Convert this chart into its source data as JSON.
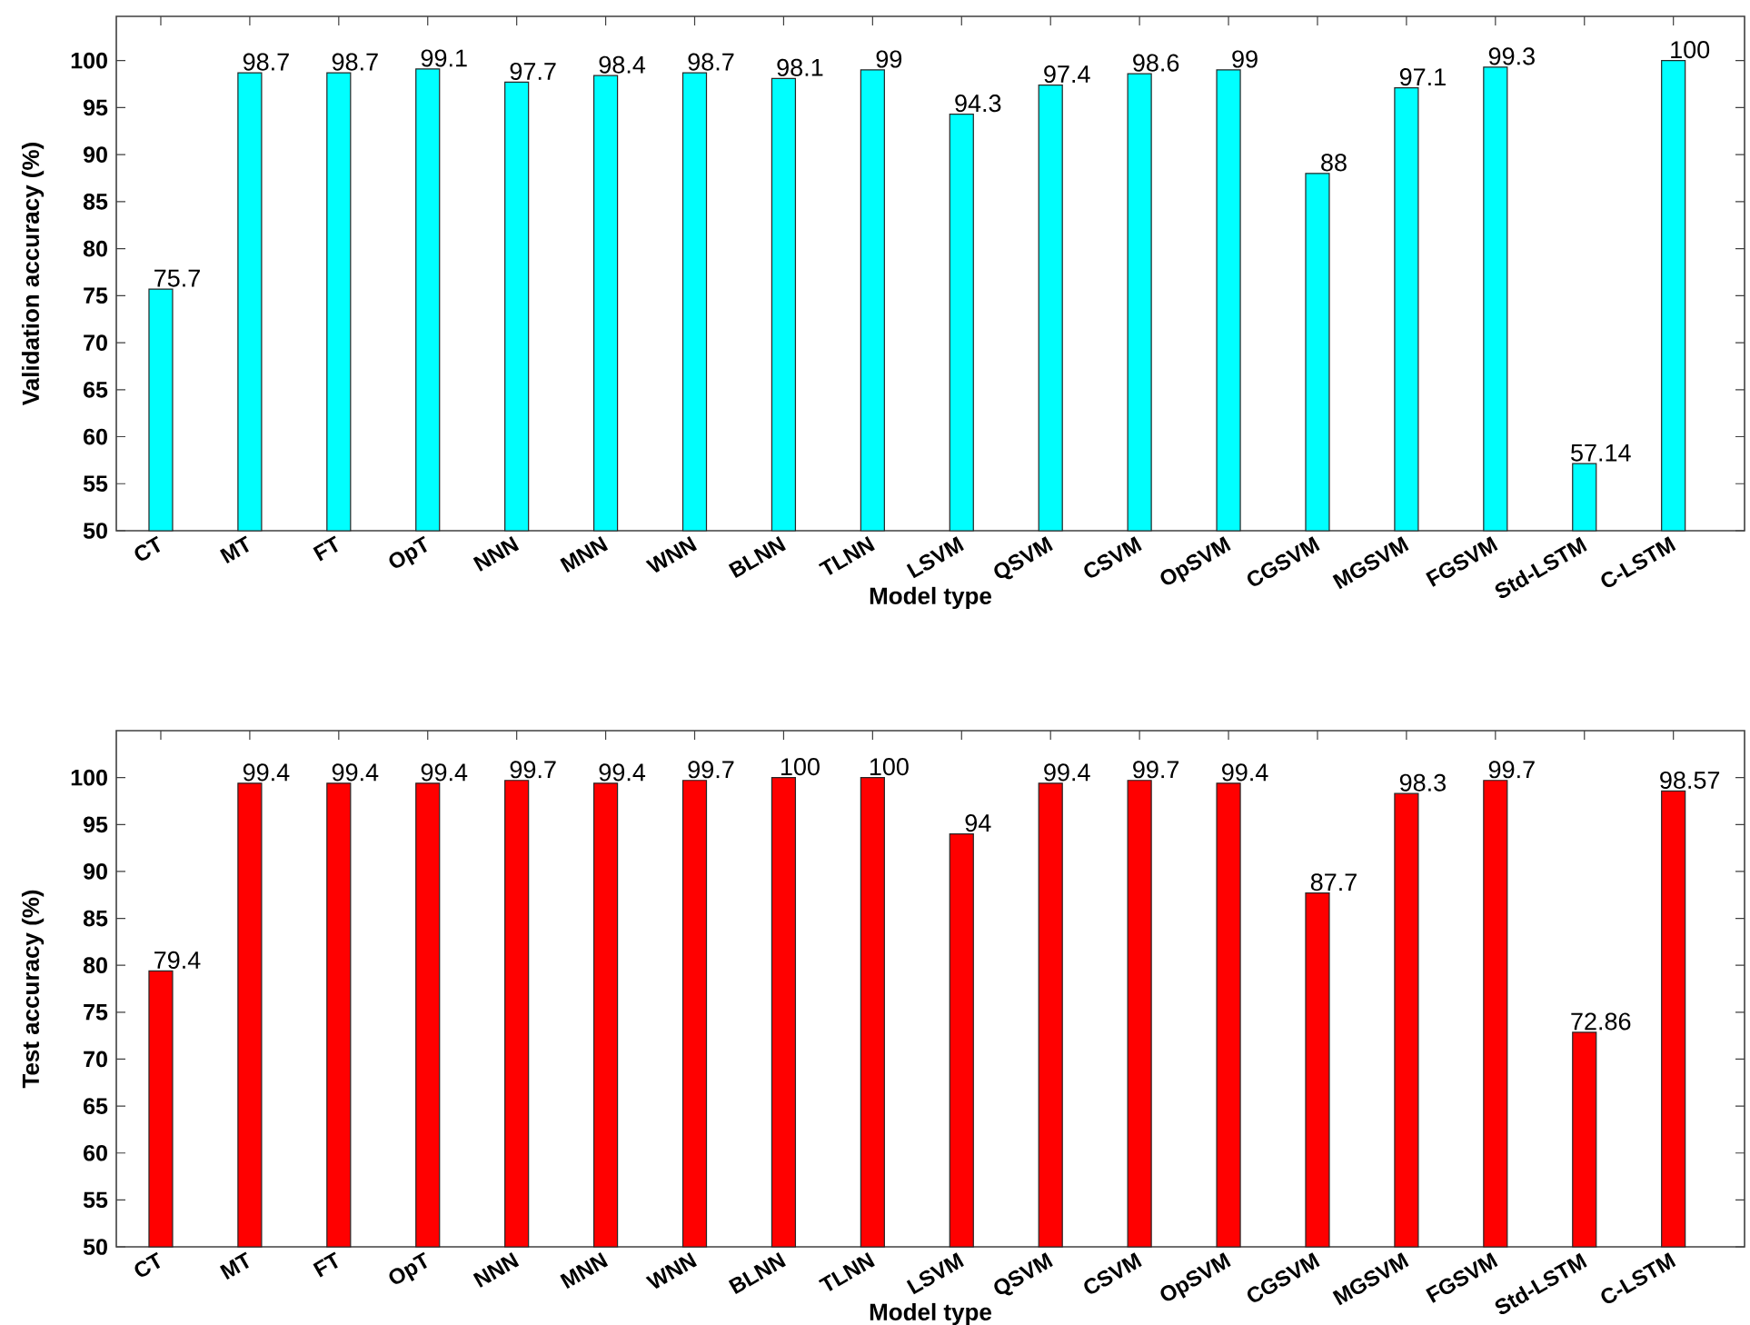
{
  "chart_data": [
    {
      "type": "bar",
      "xlabel": "Model type",
      "ylabel": "Validation accuracy (%)",
      "categories": [
        "CT",
        "MT",
        "FT",
        "OpT",
        "NNN",
        "MNN",
        "WNN",
        "BLNN",
        "TLNN",
        "LSVM",
        "QSVM",
        "CSVM",
        "OpSVM",
        "CGSVM",
        "MGSVM",
        "FGSVM",
        "Std-LSTM",
        "C-LSTM"
      ],
      "values": [
        75.7,
        98.7,
        98.7,
        99.1,
        97.7,
        98.4,
        98.7,
        98.1,
        99,
        94.3,
        97.4,
        98.6,
        99,
        88,
        97.1,
        99.3,
        57.14,
        100
      ],
      "color": "#00ffff",
      "ylim": [
        50,
        104.7
      ],
      "yticks": [
        50,
        55,
        60,
        65,
        70,
        75,
        80,
        85,
        90,
        95,
        100
      ],
      "data_labels": true
    },
    {
      "type": "bar",
      "xlabel": "Model type",
      "ylabel": "Test accuracy (%)",
      "categories": [
        "CT",
        "MT",
        "FT",
        "OpT",
        "NNN",
        "MNN",
        "WNN",
        "BLNN",
        "TLNN",
        "LSVM",
        "QSVM",
        "CSVM",
        "OpSVM",
        "CGSVM",
        "MGSVM",
        "FGSVM",
        "Std-LSTM",
        "C-LSTM"
      ],
      "values": [
        79.4,
        99.4,
        99.4,
        99.4,
        99.7,
        99.4,
        99.7,
        100,
        100,
        94,
        99.4,
        99.7,
        99.4,
        87.7,
        98.3,
        99.7,
        72.86,
        98.57
      ],
      "color": "#ff0000",
      "ylim": [
        50,
        105
      ],
      "yticks": [
        50,
        55,
        60,
        65,
        70,
        75,
        80,
        85,
        90,
        95,
        100
      ],
      "data_labels": true
    }
  ]
}
